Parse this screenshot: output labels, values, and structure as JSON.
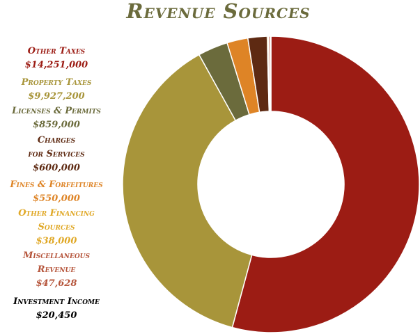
{
  "colors": {
    "title": "#6b6b3c"
  },
  "chart_data": {
    "type": "pie",
    "title": "Revenue Sources",
    "donut": true,
    "legend_position": "left",
    "series": [
      {
        "name": "Other Taxes",
        "label_lines": [
          "Other Taxes"
        ],
        "value_label": "$14,251,000",
        "value": 14251000,
        "color": "#9c1c14",
        "text_color": "#9c1c14"
      },
      {
        "name": "Property Taxes",
        "label_lines": [
          "Property Taxes"
        ],
        "value_label": "$9,927,200",
        "value": 9927200,
        "color": "#a8953a",
        "text_color": "#a8953a"
      },
      {
        "name": "Licenses & Permits",
        "label_lines": [
          "Licenses & Permits"
        ],
        "value_label": "$859,000",
        "value": 859000,
        "color": "#6b6b3c",
        "text_color": "#6b6b3c"
      },
      {
        "name": "Charges for Services",
        "label_lines": [
          "Charges",
          "for Services"
        ],
        "value_label": "$600,000",
        "value": 600000,
        "color": "#de8426",
        "text_color": "#5e2a12"
      },
      {
        "name": "Fines & Forfeitures",
        "label_lines": [
          "Fines & Forfeitures"
        ],
        "value_label": "$550,000",
        "value": 550000,
        "color": "#5e2a12",
        "text_color": "#de8426"
      },
      {
        "name": "Other Financing Sources",
        "label_lines": [
          "Other Financing",
          "Sources"
        ],
        "value_label": "$38,000",
        "value": 38000,
        "color": "#e0a826",
        "text_color": "#e0a826"
      },
      {
        "name": "Miscellaneous Revenue",
        "label_lines": [
          "Miscellaneous",
          "Revenue"
        ],
        "value_label": "$47,628",
        "value": 47628,
        "color": "#b5543a",
        "text_color": "#b5543a"
      },
      {
        "name": "Investment Income",
        "label_lines": [
          "Investment Income"
        ],
        "value_label": "$20,450",
        "value": 20450,
        "color": "#000000",
        "text_color": "#000000"
      }
    ]
  }
}
